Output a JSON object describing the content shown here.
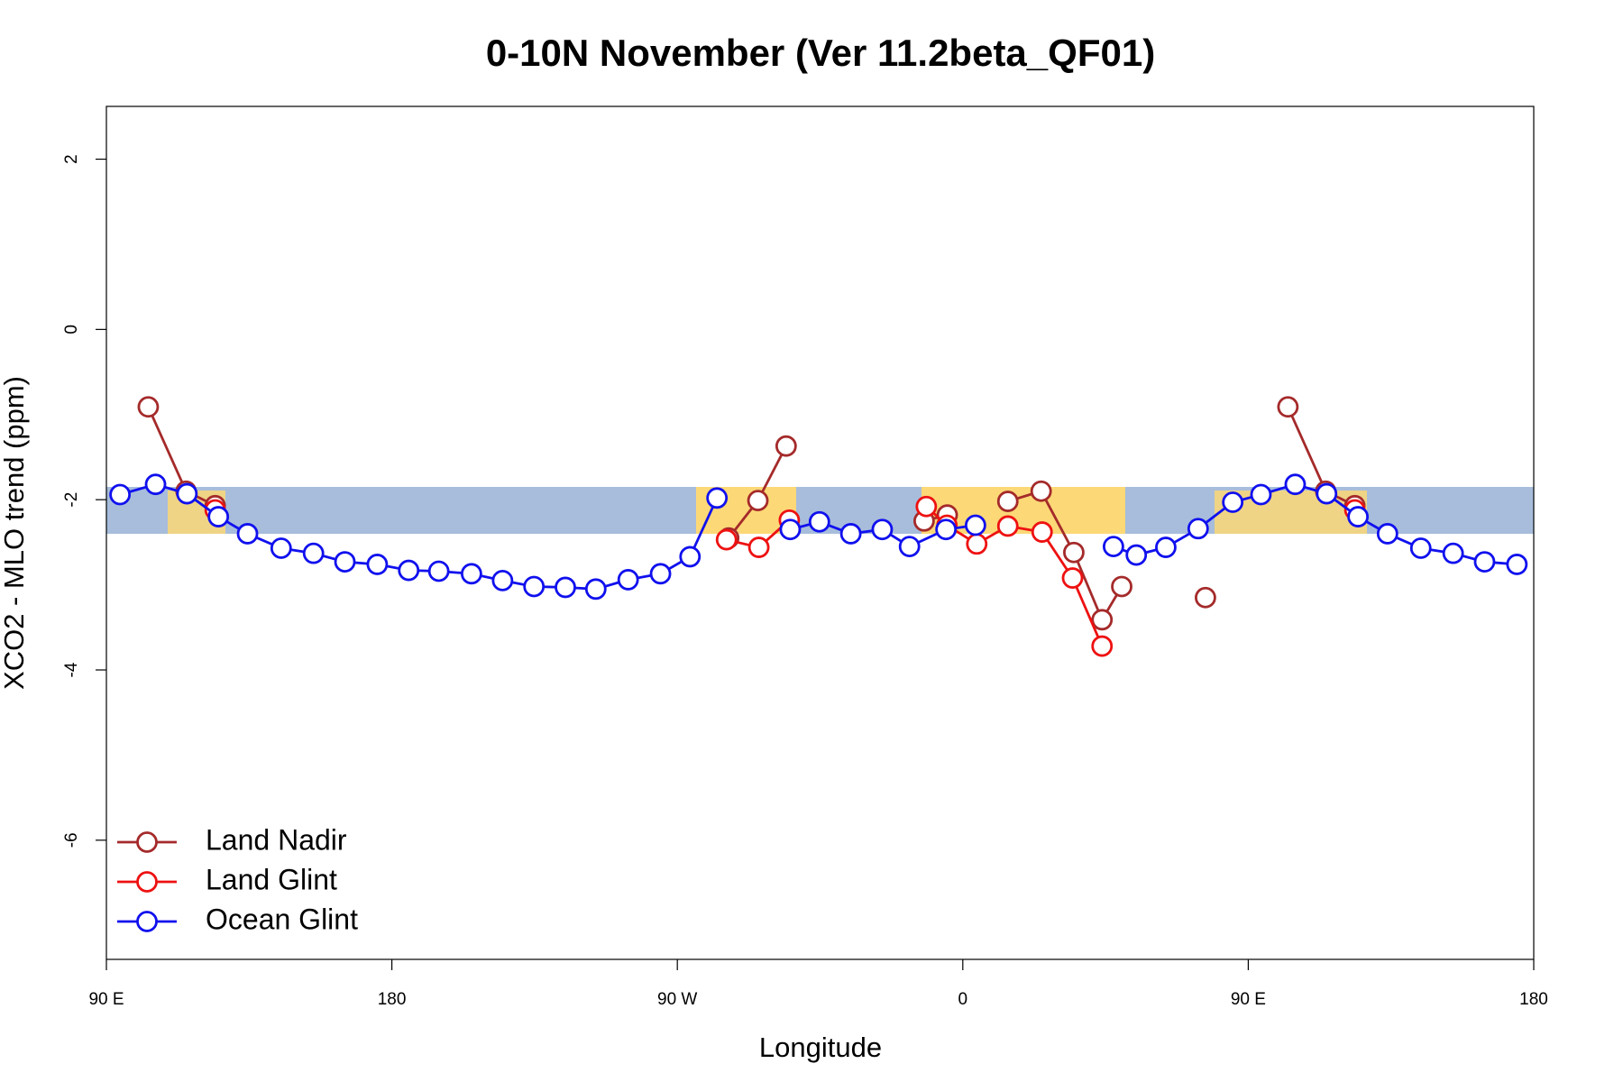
{
  "chart_data": {
    "type": "line",
    "title": "0-10N November (Ver 11.2beta_QF01)",
    "x_label": "Longitude",
    "y_label": "XCO2 - MLO trend (ppm)",
    "xlim": [
      90,
      540
    ],
    "xticks": [
      {
        "value": 90,
        "label": "90 E"
      },
      {
        "value": 180,
        "label": "180"
      },
      {
        "value": 270,
        "label": "90 W"
      },
      {
        "value": 360,
        "label": "0"
      },
      {
        "value": 450,
        "label": "90 E"
      },
      {
        "value": 540,
        "label": "180"
      }
    ],
    "ylim": [
      -7.4,
      2.62
    ],
    "yticks": [
      -6,
      -4,
      -2,
      0,
      2
    ],
    "legend": "bottom-left",
    "series": [
      {
        "name": "Land Nadir",
        "color": "#a52a2a",
        "x": [
          103.2,
          115.1,
          124.3,
          null,
          286.2,
          295.4,
          304.3,
          null,
          347.8,
          355.1,
          null,
          374.2,
          384.7,
          395.0,
          403.9,
          410.1,
          null,
          436.5,
          null,
          462.5,
          474.4,
          483.6
        ],
        "values": [
          -0.91,
          -1.9,
          -2.07,
          null,
          -2.45,
          -2.01,
          -1.37,
          null,
          -2.25,
          -2.18,
          null,
          -2.02,
          -1.9,
          -2.62,
          -3.41,
          -3.02,
          null,
          -3.15,
          null,
          -0.91,
          -1.9,
          -2.07
        ]
      },
      {
        "name": "Land Glint",
        "color": "#ee1111",
        "x": [
          124.3,
          null,
          285.5,
          295.7,
          305.3,
          null,
          348.5,
          355.0,
          364.4,
          374.2,
          385.0,
          394.6,
          403.9,
          null,
          483.6
        ],
        "values": [
          -2.12,
          null,
          -2.47,
          -2.56,
          -2.24,
          null,
          -2.08,
          -2.3,
          -2.52,
          -2.31,
          -2.38,
          -2.92,
          -3.72,
          null,
          -2.12
        ]
      },
      {
        "name": "Ocean Glint",
        "color": "#1010ee",
        "x": [
          94.3,
          105.5,
          115.4,
          125.3,
          134.5,
          145.1,
          155.3,
          165.2,
          175.4,
          185.3,
          194.8,
          205.1,
          214.9,
          224.8,
          234.7,
          244.3,
          254.5,
          264.7,
          274.0,
          282.5,
          null,
          305.6,
          314.8,
          324.7,
          334.6,
          343.2,
          354.7,
          364.0,
          null,
          407.5,
          414.7,
          424.0,
          434.2,
          445.1,
          454.0,
          464.8,
          474.7,
          484.6,
          493.9,
          504.4,
          514.6,
          524.5,
          534.7
        ],
        "values": [
          -1.94,
          -1.82,
          -1.93,
          -2.2,
          -2.4,
          -2.57,
          -2.63,
          -2.73,
          -2.76,
          -2.83,
          -2.84,
          -2.87,
          -2.95,
          -3.02,
          -3.03,
          -3.05,
          -2.94,
          -2.87,
          -2.67,
          -1.98,
          null,
          -2.35,
          -2.26,
          -2.4,
          -2.35,
          -2.55,
          -2.35,
          -2.3,
          null,
          -2.55,
          -2.65,
          -2.56,
          -2.34,
          -2.03,
          -1.94,
          -1.82,
          -1.93,
          -2.2,
          -2.4,
          -2.57,
          -2.63,
          -2.73,
          -2.76
        ]
      }
    ]
  }
}
